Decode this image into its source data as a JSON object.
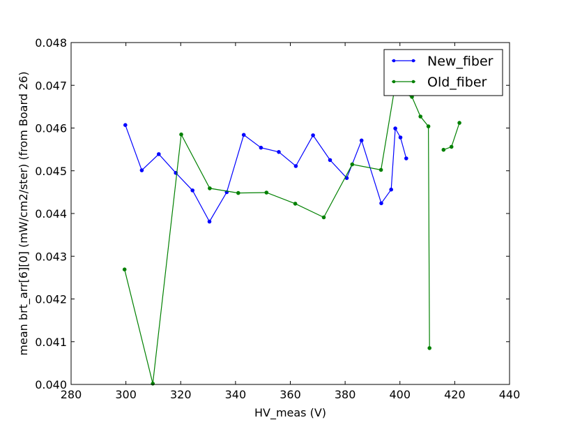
{
  "chart_data": {
    "type": "line",
    "title": "",
    "xlabel": "HV_meas (V)",
    "ylabel": "mean brt_arr[6][0] (mW/cm2/ster) (from Board 26)",
    "xlim": [
      280,
      440
    ],
    "ylim": [
      0.04,
      0.048
    ],
    "xticks": [
      "280",
      "300",
      "320",
      "340",
      "360",
      "380",
      "400",
      "420",
      "440"
    ],
    "yticks": [
      "0.040",
      "0.041",
      "0.042",
      "0.043",
      "0.044",
      "0.045",
      "0.046",
      "0.047",
      "0.048"
    ],
    "grid": false,
    "legend_position": "top-right",
    "series": [
      {
        "name": "New_fiber",
        "color": "#0000ff",
        "segments": [
          [
            [
              299.8,
              0.04607
            ],
            [
              305.8,
              0.04501
            ],
            [
              312.0,
              0.04539
            ],
            [
              318.2,
              0.04495
            ],
            [
              324.3,
              0.04454
            ],
            [
              330.5,
              0.04381
            ],
            [
              336.8,
              0.0445
            ],
            [
              343.0,
              0.04584
            ],
            [
              349.3,
              0.04554
            ],
            [
              355.8,
              0.04544
            ],
            [
              362.0,
              0.04511
            ],
            [
              368.3,
              0.04583
            ],
            [
              374.5,
              0.04525
            ],
            [
              380.6,
              0.04483
            ],
            [
              386.0,
              0.04571
            ],
            [
              393.2,
              0.04424
            ],
            [
              396.8,
              0.04456
            ],
            [
              398.3,
              0.04599
            ],
            [
              400.2,
              0.04578
            ],
            [
              402.3,
              0.04529
            ]
          ]
        ]
      },
      {
        "name": "Old_fiber",
        "color": "#008000",
        "segments": [
          [
            [
              299.5,
              0.04269
            ],
            [
              309.8,
              0.04002
            ],
            [
              320.2,
              0.04585
            ],
            [
              330.6,
              0.04459
            ],
            [
              341.0,
              0.04448
            ],
            [
              351.3,
              0.04449
            ],
            [
              361.8,
              0.04423
            ],
            [
              372.2,
              0.04391
            ],
            [
              382.6,
              0.04515
            ],
            [
              393.1,
              0.04502
            ],
            [
              398.0,
              0.0469
            ],
            [
              404.4,
              0.04673
            ],
            [
              407.5,
              0.04627
            ],
            [
              410.4,
              0.04604
            ],
            [
              410.8,
              0.04085
            ]
          ],
          [
            [
              415.9,
              0.04549
            ],
            [
              418.8,
              0.04556
            ],
            [
              421.7,
              0.04612
            ]
          ]
        ]
      }
    ]
  }
}
